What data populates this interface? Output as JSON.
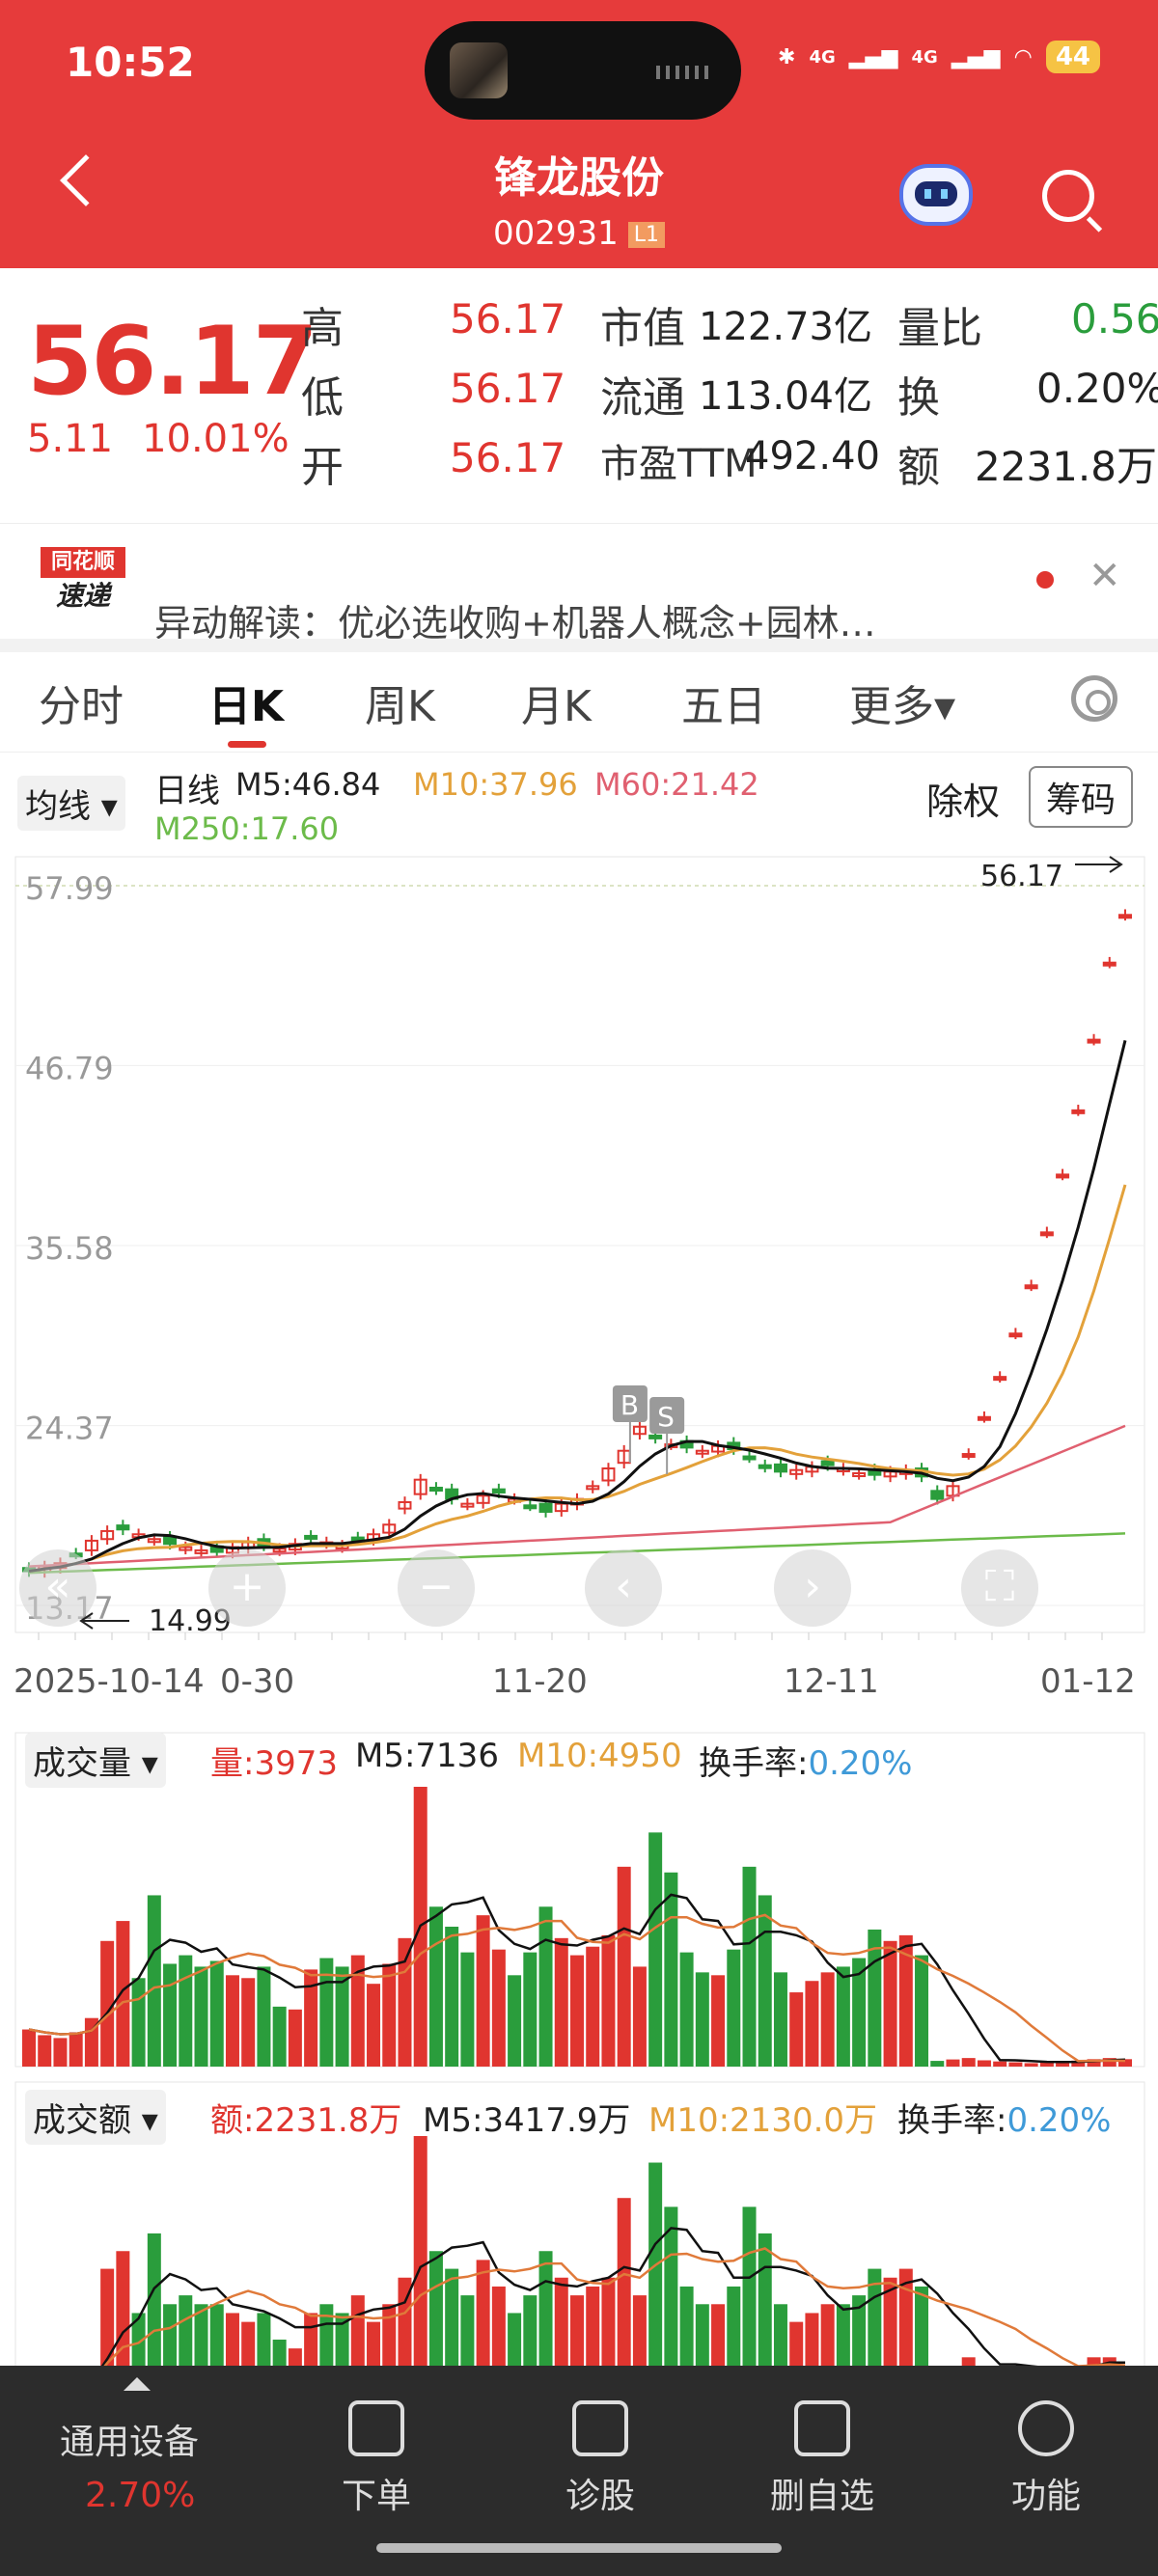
{
  "status": {
    "time": "10:52",
    "signal1": "4G",
    "signal2": "4G",
    "battery": "44"
  },
  "header": {
    "title": "锋龙股份",
    "code": "002931",
    "level": "L1"
  },
  "quote": {
    "price": "56.17",
    "change": "5.11",
    "change_pct": "10.01%",
    "high_label": "高",
    "high": "56.17",
    "low_label": "低",
    "low": "56.17",
    "open_label": "开",
    "open": "56.17",
    "mktcap_label": "市值",
    "mktcap": "122.73亿",
    "float_label": "流通",
    "float": "113.04亿",
    "pe_label": "市盈TTM",
    "pe": "492.40",
    "vr_label": "量比",
    "vr": "0.56",
    "turnover_label": "换",
    "turnover": "0.20%",
    "amount_label": "额",
    "amount": "2231.8万"
  },
  "news": {
    "logo_top": "同花顺",
    "logo_bottom": "速递",
    "text": "异动解读：优必选收购+机器人概念+园林…"
  },
  "tabs": [
    "分时",
    "日K",
    "周K",
    "月K",
    "五日",
    "更多▾"
  ],
  "kline": {
    "ma_dropdown": "均线 ▾",
    "period": "日线",
    "m5": "M5:46.84",
    "m10": "M10:37.96",
    "m60": "M60:21.42",
    "m250": "M250:17.60",
    "fq": "除权",
    "chips": "筹码",
    "y_ticks": [
      "57.99",
      "46.79",
      "35.58",
      "24.37",
      "13.17"
    ],
    "last_price_label": "56.17",
    "low_label": "14.99",
    "x_labels": [
      "2025-10-14",
      "0-30",
      "11-20",
      "12-11",
      "01-12"
    ],
    "bs_labels": [
      "B",
      "S"
    ]
  },
  "volume": {
    "dropdown": "成交量 ▾",
    "v": "量:3973",
    "m5": "M5:7136",
    "m10": "M10:4950",
    "turn_label": "换手率:",
    "turn": "0.20%"
  },
  "amount": {
    "dropdown": "成交额 ▾",
    "v": "额:2231.8万",
    "m5": "M5:3417.9万",
    "m10": "M10:2130.0万",
    "turn_label": "换手率:",
    "turn": "0.20%"
  },
  "bottom_nav": {
    "device": "通用设备",
    "device_pct": "2.70%",
    "order": "下单",
    "diagnose": "诊股",
    "remove": "删自选",
    "func": "功能"
  },
  "colors": {
    "up": "#e0352f",
    "down": "#2a9d3c",
    "m5": "#111111",
    "m10": "#e3a13a",
    "m60": "#e06070",
    "m250": "#6cbb4a"
  },
  "chart_data": [
    {
      "type": "candlestick",
      "title": "日线",
      "y_ticks": [
        57.99,
        46.79,
        35.58,
        24.37,
        13.17
      ],
      "x_labels": [
        "2025-10-14",
        "0-30",
        "11-20",
        "12-11",
        "01-12"
      ],
      "annotated": {
        "last": 56.17,
        "low": 14.99
      },
      "closes": [
        15.3,
        15.6,
        15.8,
        16.4,
        17.2,
        17.8,
        17.9,
        17.6,
        17.3,
        17.0,
        16.8,
        16.6,
        16.5,
        16.8,
        17.1,
        16.9,
        16.7,
        17.0,
        17.4,
        17.1,
        16.9,
        17.3,
        17.6,
        18.2,
        19.6,
        21.0,
        20.4,
        19.8,
        19.5,
        20.0,
        20.2,
        19.8,
        19.4,
        19.0,
        19.5,
        19.8,
        20.6,
        21.7,
        22.8,
        24.3,
        23.6,
        23.2,
        23.0,
        22.8,
        23.1,
        22.9,
        22.4,
        21.8,
        21.5,
        21.6,
        21.8,
        21.9,
        21.7,
        21.4,
        21.3,
        21.5,
        21.6,
        21.2,
        19.8,
        20.6,
        22.6,
        24.9,
        27.4,
        30.1,
        33.1,
        36.4,
        40.0,
        44.0,
        48.4,
        53.2,
        56.17
      ],
      "ma": {
        "M5": 46.84,
        "M10": 37.96,
        "M60": 21.42,
        "M250": 17.6
      }
    },
    {
      "type": "bar",
      "title": "成交量",
      "values": [
        1300,
        1100,
        1000,
        1200,
        1700,
        4400,
        5100,
        3100,
        6000,
        3600,
        3900,
        3500,
        3700,
        3200,
        3100,
        3500,
        2100,
        2000,
        3400,
        3800,
        3500,
        3900,
        2900,
        3600,
        4500,
        9800,
        5600,
        4900,
        4000,
        5300,
        4100,
        3200,
        4000,
        5600,
        4500,
        3900,
        4200,
        4600,
        7000,
        3500,
        8200,
        6800,
        4000,
        3300,
        3200,
        4100,
        7000,
        6000,
        3300,
        2600,
        3000,
        3300,
        3500,
        3800,
        4800,
        4400,
        4600,
        3900,
        200,
        250,
        300,
        220,
        180,
        150,
        120,
        160,
        180,
        210,
        260,
        300,
        260
      ]
    },
    {
      "type": "bar",
      "title": "成交额",
      "values": [
        1,
        1,
        1,
        1,
        2,
        14,
        16,
        9,
        18,
        10,
        11,
        10,
        10,
        9,
        8,
        9,
        6,
        5,
        9,
        10,
        9,
        11,
        8,
        10,
        13,
        29,
        16,
        14,
        11,
        15,
        12,
        9,
        11,
        16,
        13,
        11,
        12,
        13,
        22,
        11,
        26,
        21,
        12,
        10,
        10,
        12,
        21,
        18,
        10,
        8,
        9,
        10,
        10,
        11,
        14,
        13,
        14,
        12,
        3,
        3,
        4,
        3,
        3,
        3,
        2,
        3,
        3,
        3,
        4,
        4,
        3
      ]
    }
  ]
}
